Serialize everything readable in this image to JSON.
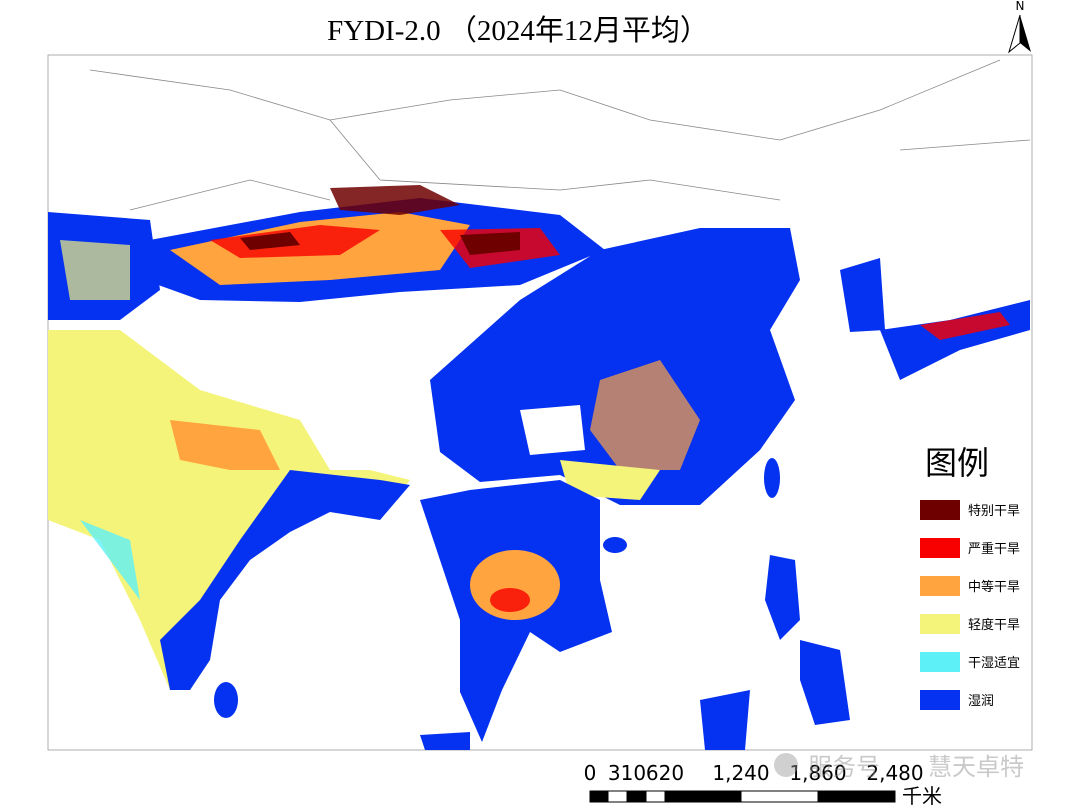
{
  "header": {
    "title": "FYDI-2.0 （2024年12月平均）",
    "north": "N"
  },
  "legend": {
    "title": "图例",
    "items": [
      {
        "label": "特别干旱",
        "color": "#6e0000"
      },
      {
        "label": "严重干旱",
        "color": "#f80000"
      },
      {
        "label": "中等干旱",
        "color": "#ffa43f"
      },
      {
        "label": "轻度干旱",
        "color": "#f5f47a"
      },
      {
        "label": "干湿适宜",
        "color": "#5ef0f7"
      },
      {
        "label": "湿润",
        "color": "#0531f0"
      }
    ]
  },
  "scale_bar": {
    "labels": [
      "0",
      "310",
      "620",
      "1,240",
      "1,860",
      "2,480"
    ],
    "unit": "千米"
  },
  "watermark": {
    "service": "服务号",
    "brand": "慧天卓特"
  }
}
